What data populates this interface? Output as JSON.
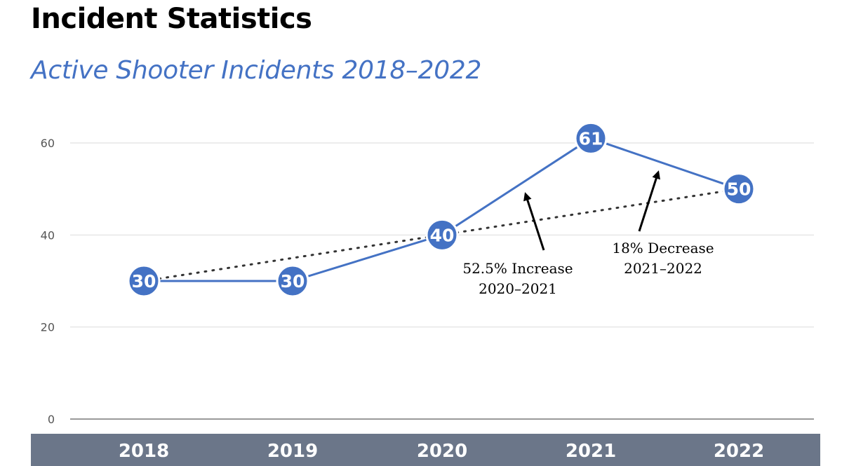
{
  "slide": {
    "title": "Incident Statistics",
    "subtitle": "Active Shooter Incidents 2018–2022"
  },
  "colors": {
    "accent": "#4472C4",
    "axis_band": "#6B7689",
    "text_dark": "#000000",
    "tick_text": "#555555",
    "grid": "#E6E6E6"
  },
  "chart_data": {
    "type": "line",
    "title": "",
    "xlabel": "",
    "ylabel": "",
    "categories": [
      "2018",
      "2019",
      "2020",
      "2021",
      "2022"
    ],
    "series": [
      {
        "values": [
          30,
          30,
          40,
          61,
          50
        ]
      }
    ],
    "data_labels": [
      "30",
      "30",
      "40",
      "61",
      "50"
    ],
    "trendline": {
      "style": "dotted",
      "from": [
        "2018",
        30
      ],
      "to": [
        "2022",
        50
      ]
    },
    "ylim": [
      0,
      65
    ],
    "yticks": [
      0,
      20,
      40,
      60
    ],
    "ytick_labels": [
      "0",
      "20",
      "40",
      "60"
    ],
    "grid": true,
    "legend": "none",
    "annotations": [
      {
        "lines": [
          "52.5% Increase",
          "2020–2021"
        ],
        "arrow_target": [
          "2020-2021",
          47.3
        ]
      },
      {
        "lines": [
          "18% Decrease",
          "2021–2022"
        ],
        "arrow_target": [
          "2021-2022",
          55
        ]
      }
    ]
  }
}
